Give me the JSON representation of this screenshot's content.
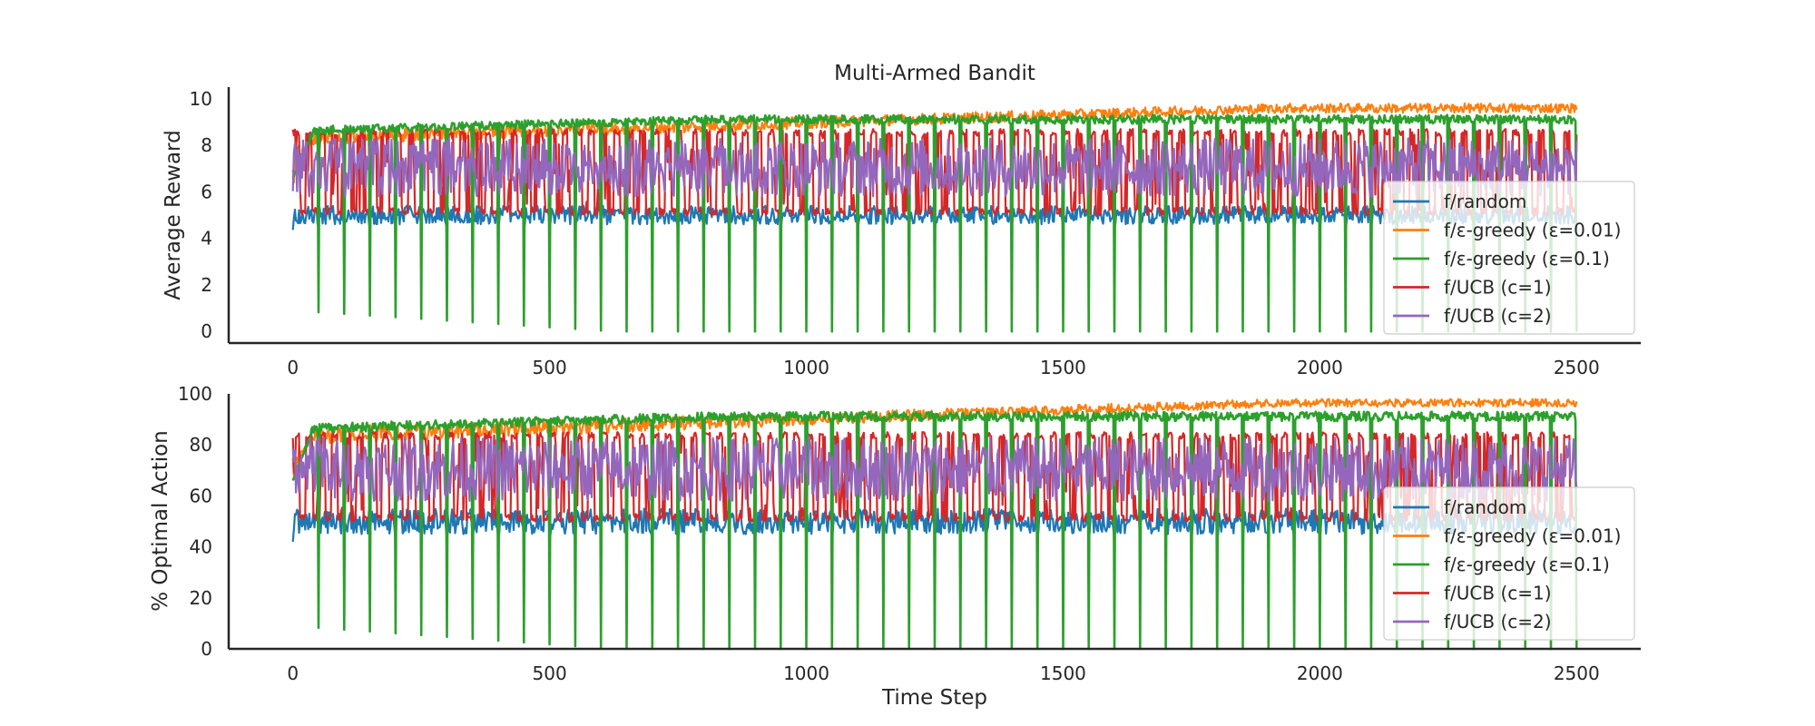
{
  "chart_data": {
    "type": "line",
    "title": "Multi-Armed Bandit",
    "xlabel": "Time Step",
    "xlim": [
      -125,
      2625
    ],
    "xticks": [
      0,
      500,
      1000,
      1500,
      2000,
      2500
    ],
    "x_range": [
      0,
      2500
    ],
    "spike_period": 25,
    "legend_position": "lower right",
    "grid": false,
    "series": [
      {
        "name": "f/random",
        "color": "#1f77b4"
      },
      {
        "name": "f/ε-greedy (ε=0.01)",
        "color": "#ff7f0e"
      },
      {
        "name": "f/ε-greedy (ε=0.1)",
        "color": "#2ca02c"
      },
      {
        "name": "f/UCB (c=1)",
        "color": "#d62728"
      },
      {
        "name": "f/UCB (c=2)",
        "color": "#9467bd"
      }
    ],
    "panels": [
      {
        "id": "reward",
        "ylabel": "Average Reward",
        "ylim": [
          -0.5,
          10.5
        ],
        "yticks": [
          0,
          2,
          4,
          6,
          8,
          10
        ],
        "approx_levels": {
          "f/random": {
            "peak": 5.4,
            "trough": 4.6
          },
          "f/ε-greedy (ε=0.01)": {
            "start": 8.6,
            "end": 9.8,
            "trough_start": 8.0,
            "trough_end": 9.4
          },
          "f/ε-greedy (ε=0.1)": {
            "start": 8.8,
            "plateau": 9.3,
            "spike_start": 0.9,
            "spike_end": 0.0
          },
          "f/UCB (c=1)": {
            "peak": 8.7,
            "trough": 5.0
          },
          "f/UCB (c=2)": {
            "peak": 8.3,
            "trough": 5.8
          }
        }
      },
      {
        "id": "optimal",
        "ylabel": "% Optimal Action",
        "ylim": [
          0,
          100
        ],
        "yticks": [
          0,
          20,
          40,
          60,
          80,
          100
        ],
        "approx_levels": {
          "f/random": {
            "peak": 55,
            "trough": 45
          },
          "f/ε-greedy (ε=0.01)": {
            "start": 87,
            "end": 98,
            "trough_start": 80,
            "trough_end": 95
          },
          "f/ε-greedy (ε=0.1)": {
            "start": 88,
            "plateau": 93,
            "spike_start": 9,
            "spike_end": 0
          },
          "f/UCB (c=1)": {
            "peak": 85,
            "trough": 50
          },
          "f/UCB (c=2)": {
            "peak": 83,
            "trough": 58
          }
        }
      }
    ]
  }
}
